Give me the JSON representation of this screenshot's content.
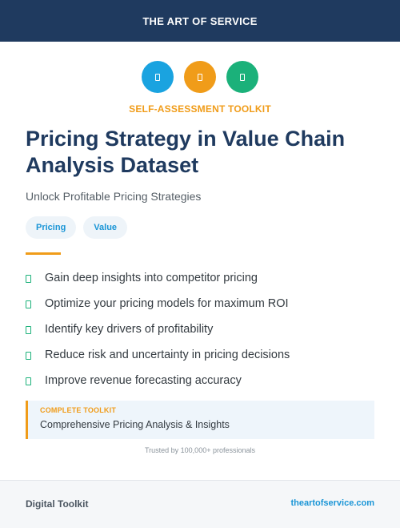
{
  "header": {
    "brand": "THE ART OF SERVICE"
  },
  "colors": {
    "navy": "#1f3a5f",
    "blue": "#1aa3e0",
    "orange": "#f09c19",
    "green": "#1bb17a",
    "blue_accent": "#1a95d6"
  },
  "icons": [
    {
      "name": "document-icon",
      "color": "#1aa3e0"
    },
    {
      "name": "document-icon",
      "color": "#f09c19"
    },
    {
      "name": "document-icon",
      "color": "#1bb17a"
    }
  ],
  "kicker": "SELF-ASSESSMENT TOOLKIT",
  "title": "Pricing Strategy in Value Chain Analysis Dataset",
  "subtitle": "Unlock Profitable Pricing Strategies",
  "tags": [
    "Pricing",
    "Value"
  ],
  "benefits": [
    "Gain deep insights into competitor pricing",
    "Optimize your pricing models for maximum ROI",
    "Identify key drivers of profitability",
    "Reduce risk and uncertainty in pricing decisions",
    "Improve revenue forecasting accuracy"
  ],
  "callout": {
    "kicker": "COMPLETE TOOLKIT",
    "text": "Comprehensive Pricing Analysis & Insights"
  },
  "trusted": "Trusted by 100,000+ professionals",
  "footer": {
    "left": "Digital Toolkit",
    "right": "theartofservice.com"
  }
}
